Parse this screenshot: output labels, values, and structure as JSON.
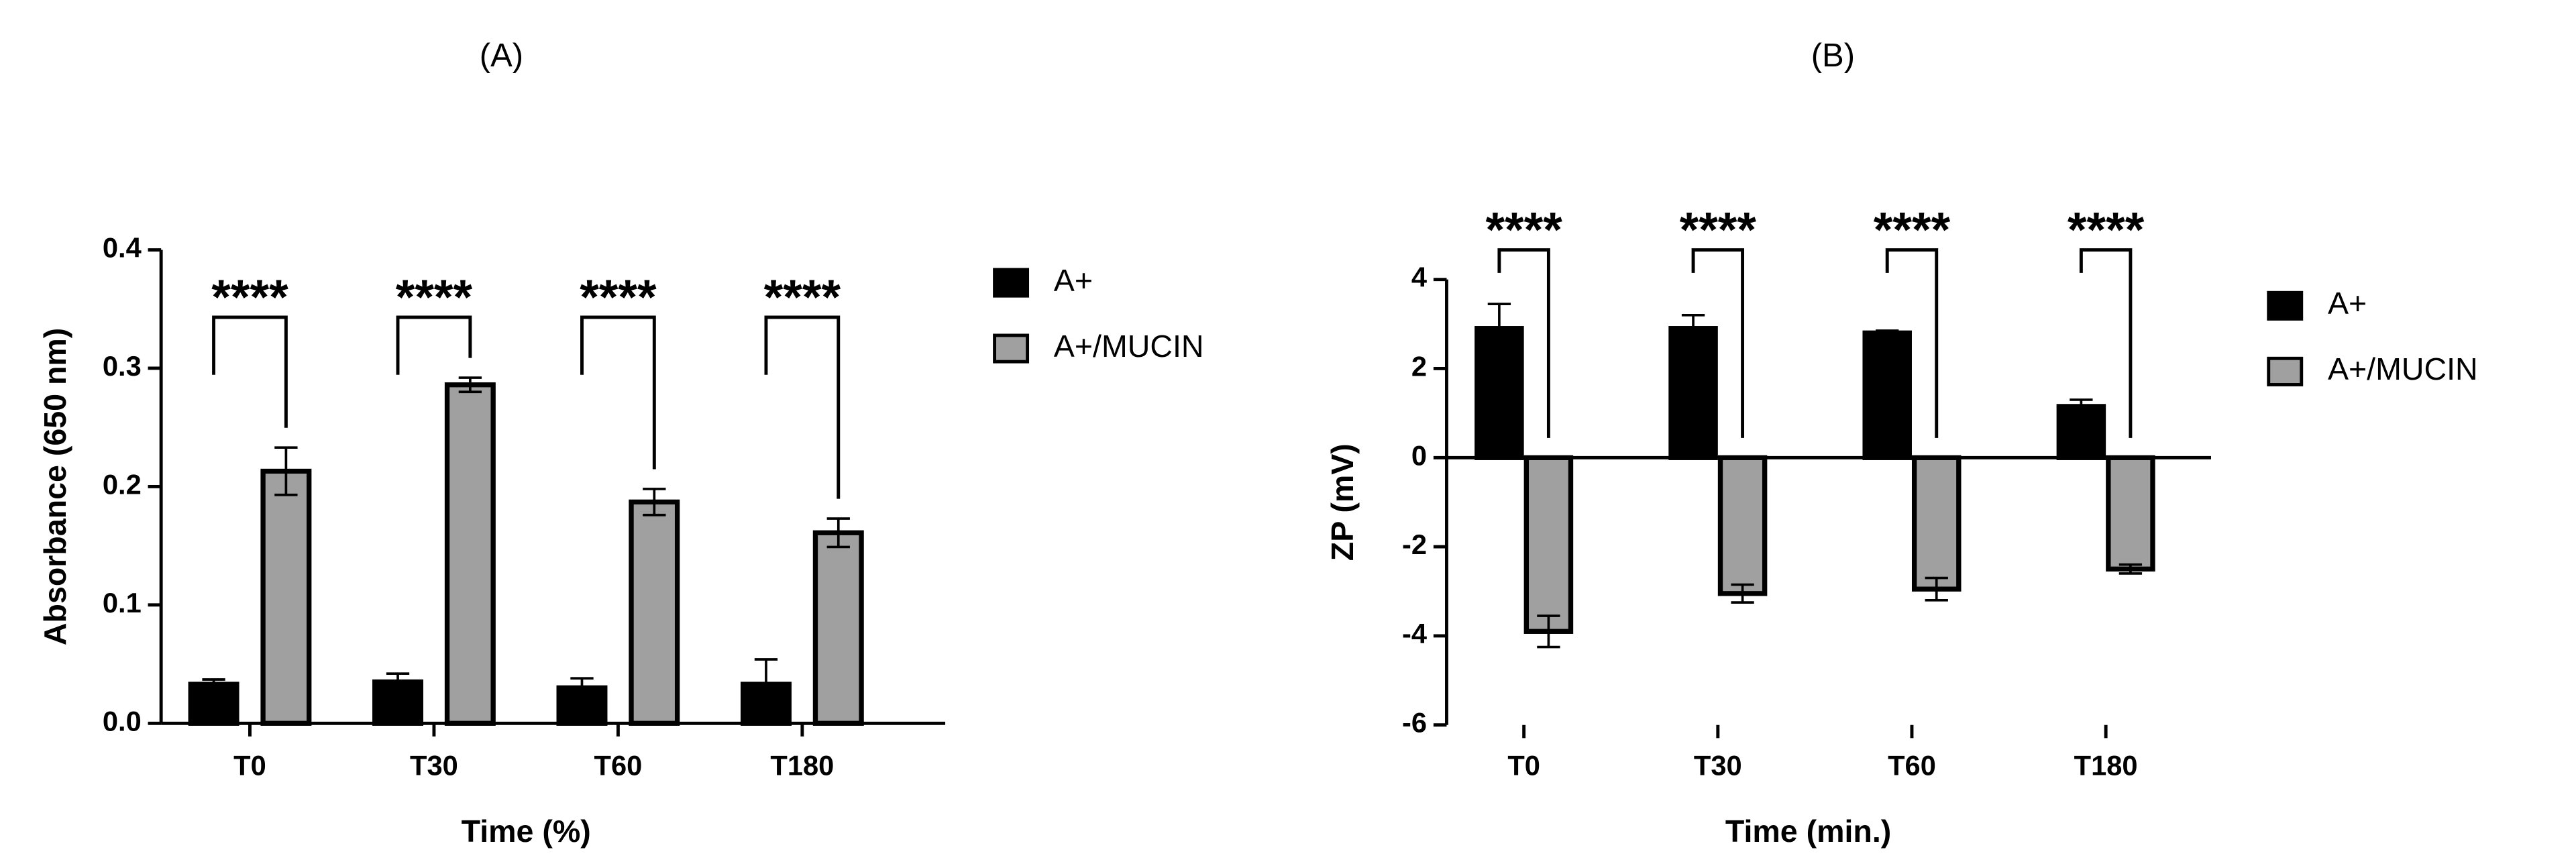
{
  "chart_data": [
    {
      "type": "bar",
      "title": "(A)",
      "xlabel": "Time (%)",
      "ylabel": "Absorbance (650 nm)",
      "categories": [
        "T0",
        "T30",
        "T60",
        "T180"
      ],
      "series": [
        {
          "name": "A+",
          "color": "#000000",
          "values": [
            0.033,
            0.035,
            0.03,
            0.033
          ],
          "errors": [
            0.004,
            0.007,
            0.008,
            0.021
          ]
        },
        {
          "name": "A+/MUCIN",
          "color": "#a0a0a0",
          "values": [
            0.213,
            0.286,
            0.187,
            0.161
          ],
          "errors": [
            0.02,
            0.006,
            0.011,
            0.012
          ]
        }
      ],
      "significance": [
        "****",
        "****",
        "****",
        "****"
      ],
      "ylim": [
        0,
        0.4
      ],
      "yticks": [
        {
          "value": 0,
          "label": "0.0"
        },
        0.1,
        0.2,
        0.3,
        0.4
      ]
    },
    {
      "type": "bar",
      "title": "(B)",
      "xlabel": "Time (min.)",
      "ylabel": "ZP (mV)",
      "categories": [
        "T0",
        "T30",
        "T60",
        "T180"
      ],
      "series": [
        {
          "name": "A+",
          "color": "#000000",
          "values": [
            2.9,
            2.9,
            2.8,
            1.15
          ],
          "errors": [
            0.55,
            0.3,
            0.05,
            0.15
          ]
        },
        {
          "name": "A+/MUCIN",
          "color": "#a0a0a0",
          "values": [
            -3.9,
            -3.05,
            -2.95,
            -2.5
          ],
          "errors": [
            0.35,
            0.2,
            0.25,
            0.1
          ]
        }
      ],
      "significance": [
        "****",
        "****",
        "****",
        "****"
      ],
      "ylim": [
        -6,
        4
      ],
      "yticks": [
        -6,
        -4,
        -2,
        0,
        2,
        4
      ]
    }
  ]
}
